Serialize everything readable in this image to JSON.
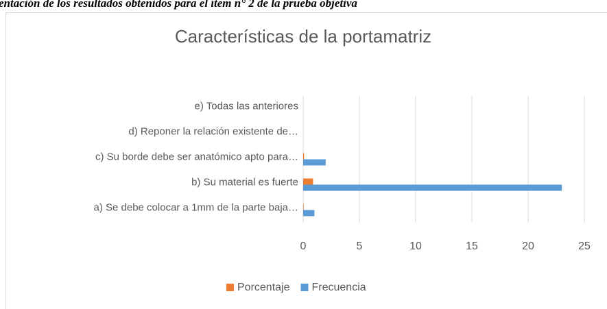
{
  "caption": "entación de los resultados obtenidos para el ítem n° 2 de la prueba objetiva",
  "chart_data": {
    "type": "hbar",
    "title": "Características de la portamatriz",
    "categories": [
      "a) Se debe colocar a 1mm de la parte baja…",
      "b) Su material es fuerte",
      "c) Su borde debe ser anatómico apto para…",
      "d) Reponer la relación existente de…",
      "e) Todas las anteriores"
    ],
    "series": [
      {
        "name": "Porcentaje",
        "color": "#ed7d31",
        "values": [
          0.04,
          0.88,
          0.08,
          0,
          0
        ]
      },
      {
        "name": "Frecuencia",
        "color": "#5b9bd5",
        "values": [
          1,
          23,
          2,
          0,
          0
        ]
      }
    ],
    "xlim": [
      0,
      25
    ],
    "xticks": [
      0,
      5,
      10,
      15,
      20,
      25
    ],
    "grid": true,
    "legend": "bottom"
  }
}
